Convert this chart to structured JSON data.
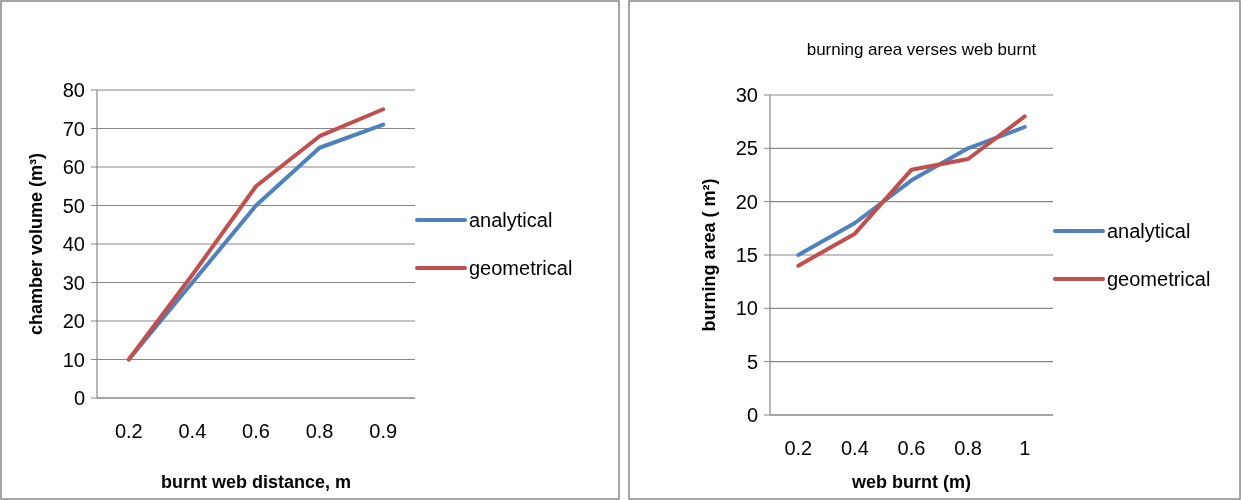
{
  "chart_data": [
    {
      "type": "line",
      "xlabel": "burnt web distance, m",
      "ylabel": "chamber volume (m³)",
      "categories": [
        "0.2",
        "0.4",
        "0.6",
        "0.8",
        "0.9"
      ],
      "ylim": [
        0,
        80
      ],
      "yticks": [
        0,
        10,
        20,
        30,
        40,
        50,
        60,
        70,
        80
      ],
      "grid": "y",
      "legend": "right",
      "marker": "none",
      "series": [
        {
          "name": "analytical",
          "color": "#4f81bd",
          "values": [
            10,
            30,
            50,
            65,
            71
          ]
        },
        {
          "name": "geometrical",
          "color": "#c0504d",
          "values": [
            10,
            32,
            55,
            68,
            75
          ]
        }
      ]
    },
    {
      "type": "line",
      "title": "burning area verses web burnt",
      "xlabel": "web burnt (m)",
      "ylabel": "burning area ( m²)",
      "categories": [
        "0.2",
        "0.4",
        "0.6",
        "0.8",
        "1"
      ],
      "ylim": [
        0,
        30
      ],
      "yticks": [
        0,
        5,
        10,
        15,
        20,
        25,
        30
      ],
      "grid": "y",
      "legend": "right",
      "marker": "none",
      "series": [
        {
          "name": "analytical",
          "color": "#4f81bd",
          "values": [
            15,
            18,
            22,
            25,
            27
          ]
        },
        {
          "name": "geometrical",
          "color": "#c0504d",
          "values": [
            14,
            17,
            23,
            24,
            28
          ]
        }
      ]
    }
  ]
}
